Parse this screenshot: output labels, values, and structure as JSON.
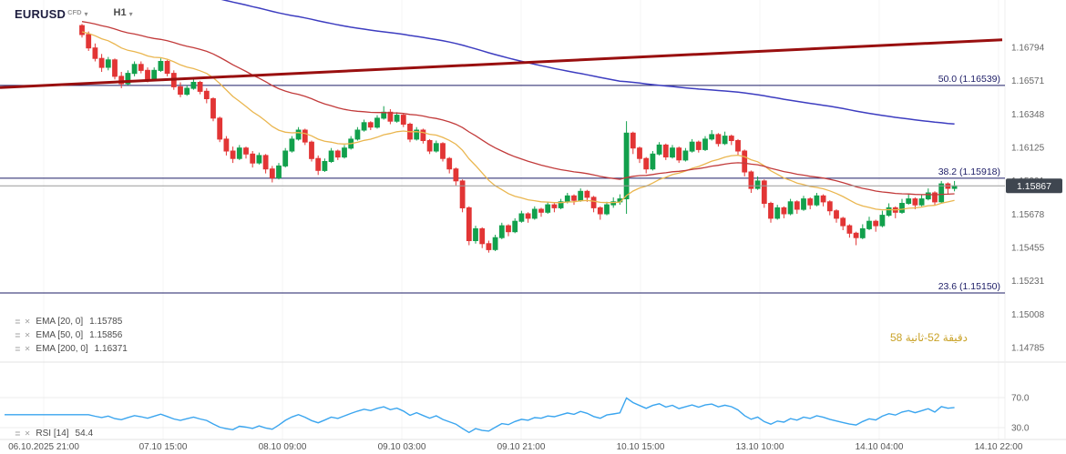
{
  "header": {
    "symbol": "EURUSD",
    "market": "CFD",
    "timeframe": "H1"
  },
  "indicators": {
    "rows": [
      {
        "name": "EMA [20, 0]",
        "value": "1.15785"
      },
      {
        "name": "EMA [50, 0]",
        "value": "1.15856"
      },
      {
        "name": "EMA [200, 0]",
        "value": "1.16371"
      }
    ],
    "rsi_row": {
      "name": "RSI [14]",
      "value": "54.4"
    }
  },
  "countdown": {
    "text": "دقيقة 52-ثانية 58",
    "color": "#c9a227"
  },
  "chart_data": {
    "type": "candlestick",
    "symbol": "EURUSD CFD",
    "timeframe": "H1",
    "price_range_visible": [
      1.1474,
      1.1711
    ],
    "grid": "off",
    "price_axis": {
      "labels": [
        "1.16794",
        "1.16571",
        "1.16348",
        "1.16125",
        "1.15901",
        "1.15678",
        "1.15455",
        "1.15231",
        "1.15008",
        "1.14785"
      ]
    },
    "time_axis": {
      "labels": [
        "06.10.2025 21:00",
        "07.10 15:00",
        "08.10 09:00",
        "09.10 03:00",
        "09.10 21:00",
        "10.10 15:00",
        "13.10 10:00",
        "14.10 04:00",
        "14.10 22:00"
      ]
    },
    "rsi_axis": {
      "labels": [
        "70.0",
        "30.0"
      ],
      "range": [
        0,
        100
      ]
    },
    "overlays": {
      "fibonacci": [
        {
          "label": "50.0 (1.16539)",
          "price": 1.16539
        },
        {
          "label": "38.2 (1.15918)",
          "price": 1.15918
        },
        {
          "label": "23.6 (1.15150)",
          "price": 1.1515
        }
      ],
      "trend_line": {
        "from_price": 1.16525,
        "to_price": 1.16845
      },
      "current_price": 1.15867,
      "current_price_label": "1.15867",
      "ema": [
        {
          "period": 20,
          "offset": 0,
          "last": 1.15785
        },
        {
          "period": 50,
          "offset": 0,
          "last": 1.15856
        },
        {
          "period": 200,
          "offset": 0,
          "last": 1.16371
        }
      ]
    },
    "rsi": {
      "period": 14,
      "last": 54.4,
      "levels": [
        70,
        30
      ]
    },
    "colors": {
      "up": "#12a04c",
      "down": "#e23535",
      "ema20": "#eab64f",
      "ema50": "#c23b3b",
      "ema200": "#3d3dc0",
      "trend": "#990f0f",
      "fib": "#1c1c66",
      "rsi": "#3aa5ef",
      "price_tag_bg": "#3f4650",
      "axis_text": "#666666"
    },
    "candles": [
      [
        1.1694,
        1.1695,
        1.1686,
        1.1688
      ],
      [
        1.1688,
        1.169,
        1.1677,
        1.1679
      ],
      [
        1.1679,
        1.1682,
        1.167,
        1.1672
      ],
      [
        1.1672,
        1.1675,
        1.1663,
        1.1666
      ],
      [
        1.1666,
        1.1673,
        1.1664,
        1.1671
      ],
      [
        1.1671,
        1.1672,
        1.1658,
        1.166
      ],
      [
        1.166,
        1.1663,
        1.1652,
        1.1655
      ],
      [
        1.1655,
        1.1664,
        1.1654,
        1.1662
      ],
      [
        1.1662,
        1.167,
        1.166,
        1.1668
      ],
      [
        1.1668,
        1.167,
        1.1662,
        1.1664
      ],
      [
        1.1664,
        1.1666,
        1.1656,
        1.1658
      ],
      [
        1.1658,
        1.1666,
        1.1657,
        1.1664
      ],
      [
        1.1664,
        1.1672,
        1.1663,
        1.167
      ],
      [
        1.167,
        1.1671,
        1.166,
        1.1662
      ],
      [
        1.1662,
        1.1664,
        1.1651,
        1.1653
      ],
      [
        1.1653,
        1.1656,
        1.1646,
        1.1648
      ],
      [
        1.1648,
        1.1654,
        1.1647,
        1.1652
      ],
      [
        1.1652,
        1.1658,
        1.1651,
        1.1656
      ],
      [
        1.1656,
        1.1657,
        1.1648,
        1.165
      ],
      [
        1.165,
        1.1652,
        1.1642,
        1.1645
      ],
      [
        1.1645,
        1.1646,
        1.163,
        1.1632
      ],
      [
        1.1632,
        1.1633,
        1.1616,
        1.1618
      ],
      [
        1.1618,
        1.162,
        1.1607,
        1.161
      ],
      [
        1.161,
        1.1613,
        1.1602,
        1.1605
      ],
      [
        1.1605,
        1.1614,
        1.1604,
        1.1612
      ],
      [
        1.1612,
        1.1613,
        1.1605,
        1.1608
      ],
      [
        1.1608,
        1.161,
        1.1599,
        1.1602
      ],
      [
        1.1602,
        1.1609,
        1.1601,
        1.1607
      ],
      [
        1.1607,
        1.1608,
        1.1595,
        1.1598
      ],
      [
        1.1598,
        1.16,
        1.1589,
        1.1592
      ],
      [
        1.1592,
        1.1602,
        1.1591,
        1.16
      ],
      [
        1.16,
        1.1612,
        1.1599,
        1.161
      ],
      [
        1.161,
        1.162,
        1.1609,
        1.1618
      ],
      [
        1.1618,
        1.1626,
        1.1617,
        1.1624
      ],
      [
        1.1624,
        1.1625,
        1.1614,
        1.1616
      ],
      [
        1.1616,
        1.1617,
        1.1603,
        1.1605
      ],
      [
        1.1605,
        1.1607,
        1.1594,
        1.1597
      ],
      [
        1.1597,
        1.1605,
        1.1596,
        1.1603
      ],
      [
        1.1603,
        1.1612,
        1.1602,
        1.161
      ],
      [
        1.161,
        1.1611,
        1.1604,
        1.1606
      ],
      [
        1.1606,
        1.1614,
        1.1605,
        1.1612
      ],
      [
        1.1612,
        1.162,
        1.1611,
        1.1618
      ],
      [
        1.1618,
        1.1626,
        1.1617,
        1.1624
      ],
      [
        1.1624,
        1.1631,
        1.1623,
        1.1629
      ],
      [
        1.1629,
        1.163,
        1.1624,
        1.1626
      ],
      [
        1.1626,
        1.1634,
        1.1625,
        1.1632
      ],
      [
        1.1632,
        1.164,
        1.1631,
        1.1636
      ],
      [
        1.1636,
        1.1638,
        1.1628,
        1.163
      ],
      [
        1.163,
        1.1636,
        1.1629,
        1.1634
      ],
      [
        1.1634,
        1.1635,
        1.1626,
        1.1628
      ],
      [
        1.1628,
        1.1629,
        1.1616,
        1.1618
      ],
      [
        1.1618,
        1.1626,
        1.1617,
        1.1624
      ],
      [
        1.1624,
        1.1625,
        1.1615,
        1.1617
      ],
      [
        1.1617,
        1.1618,
        1.1608,
        1.161
      ],
      [
        1.161,
        1.1617,
        1.1609,
        1.1615
      ],
      [
        1.1615,
        1.1616,
        1.1603,
        1.1605
      ],
      [
        1.1605,
        1.1606,
        1.1595,
        1.1598
      ],
      [
        1.1598,
        1.1599,
        1.1587,
        1.159
      ],
      [
        1.159,
        1.1591,
        1.1569,
        1.1572
      ],
      [
        1.1572,
        1.1573,
        1.1547,
        1.155
      ],
      [
        1.155,
        1.156,
        1.1548,
        1.1558
      ],
      [
        1.1558,
        1.1559,
        1.1545,
        1.1548
      ],
      [
        1.1548,
        1.155,
        1.1542,
        1.1544
      ],
      [
        1.1544,
        1.1554,
        1.1543,
        1.1552
      ],
      [
        1.1552,
        1.1562,
        1.1551,
        1.156
      ],
      [
        1.156,
        1.1561,
        1.1553,
        1.1556
      ],
      [
        1.1556,
        1.1565,
        1.1555,
        1.1563
      ],
      [
        1.1563,
        1.157,
        1.1562,
        1.1568
      ],
      [
        1.1568,
        1.1569,
        1.1562,
        1.1565
      ],
      [
        1.1565,
        1.1573,
        1.1564,
        1.1571
      ],
      [
        1.1571,
        1.1572,
        1.1566,
        1.1569
      ],
      [
        1.1569,
        1.1576,
        1.1568,
        1.1574
      ],
      [
        1.1574,
        1.1575,
        1.1569,
        1.1572
      ],
      [
        1.1572,
        1.1578,
        1.1571,
        1.1576
      ],
      [
        1.1576,
        1.1582,
        1.1575,
        1.158
      ],
      [
        1.158,
        1.1581,
        1.1574,
        1.1577
      ],
      [
        1.1577,
        1.1585,
        1.1576,
        1.1583
      ],
      [
        1.1583,
        1.1584,
        1.1576,
        1.1579
      ],
      [
        1.1579,
        1.158,
        1.1569,
        1.1572
      ],
      [
        1.1572,
        1.1573,
        1.1564,
        1.1568
      ],
      [
        1.1568,
        1.1576,
        1.1567,
        1.1574
      ],
      [
        1.1574,
        1.1579,
        1.1572,
        1.1576
      ],
      [
        1.1576,
        1.1581,
        1.1574,
        1.1578
      ],
      [
        1.1578,
        1.163,
        1.1568,
        1.1622
      ],
      [
        1.1622,
        1.1623,
        1.1608,
        1.1612
      ],
      [
        1.1612,
        1.1613,
        1.1602,
        1.1605
      ],
      [
        1.1605,
        1.1606,
        1.1595,
        1.1598
      ],
      [
        1.1598,
        1.161,
        1.1597,
        1.1608
      ],
      [
        1.1608,
        1.1616,
        1.1607,
        1.1614
      ],
      [
        1.1614,
        1.1615,
        1.1604,
        1.1606
      ],
      [
        1.1606,
        1.1614,
        1.1605,
        1.1612
      ],
      [
        1.1612,
        1.1613,
        1.1602,
        1.1604
      ],
      [
        1.1604,
        1.1612,
        1.1603,
        1.161
      ],
      [
        1.161,
        1.1618,
        1.1609,
        1.1616
      ],
      [
        1.1616,
        1.1617,
        1.1609,
        1.1611
      ],
      [
        1.1611,
        1.162,
        1.161,
        1.1618
      ],
      [
        1.1618,
        1.1624,
        1.1617,
        1.1621
      ],
      [
        1.1621,
        1.1622,
        1.1613,
        1.1615
      ],
      [
        1.1615,
        1.1623,
        1.1614,
        1.162
      ],
      [
        1.162,
        1.1621,
        1.1614,
        1.1617
      ],
      [
        1.1617,
        1.1618,
        1.1607,
        1.161
      ],
      [
        1.161,
        1.1611,
        1.1593,
        1.1596
      ],
      [
        1.1596,
        1.1597,
        1.1582,
        1.1585
      ],
      [
        1.1585,
        1.1593,
        1.1584,
        1.159
      ],
      [
        1.159,
        1.1591,
        1.1572,
        1.1575
      ],
      [
        1.1575,
        1.1576,
        1.1562,
        1.1565
      ],
      [
        1.1565,
        1.1574,
        1.1564,
        1.1572
      ],
      [
        1.1572,
        1.1573,
        1.1565,
        1.1568
      ],
      [
        1.1568,
        1.1578,
        1.1567,
        1.1576
      ],
      [
        1.1576,
        1.1577,
        1.1568,
        1.1571
      ],
      [
        1.1571,
        1.158,
        1.157,
        1.1578
      ],
      [
        1.1578,
        1.1579,
        1.1571,
        1.1574
      ],
      [
        1.1574,
        1.1582,
        1.1573,
        1.158
      ],
      [
        1.158,
        1.1581,
        1.1573,
        1.1576
      ],
      [
        1.1576,
        1.1577,
        1.1567,
        1.157
      ],
      [
        1.157,
        1.1571,
        1.1562,
        1.1565
      ],
      [
        1.1565,
        1.1566,
        1.1557,
        1.156
      ],
      [
        1.156,
        1.1561,
        1.1552,
        1.1555
      ],
      [
        1.1555,
        1.1556,
        1.1547,
        1.1552
      ],
      [
        1.1552,
        1.1561,
        1.1551,
        1.1558
      ],
      [
        1.1558,
        1.1566,
        1.1557,
        1.1563
      ],
      [
        1.1563,
        1.1564,
        1.1556,
        1.156
      ],
      [
        1.156,
        1.157,
        1.1559,
        1.1567
      ],
      [
        1.1567,
        1.1575,
        1.1566,
        1.1572
      ],
      [
        1.1572,
        1.1573,
        1.1565,
        1.1569
      ],
      [
        1.1569,
        1.1578,
        1.1568,
        1.1575
      ],
      [
        1.1575,
        1.1581,
        1.1574,
        1.1578
      ],
      [
        1.1578,
        1.1579,
        1.1571,
        1.1574
      ],
      [
        1.1574,
        1.1581,
        1.1573,
        1.1578
      ],
      [
        1.1578,
        1.1585,
        1.1577,
        1.1582
      ],
      [
        1.1582,
        1.1583,
        1.1574,
        1.1576
      ],
      [
        1.1576,
        1.159,
        1.1575,
        1.1588
      ],
      [
        1.1588,
        1.1589,
        1.1581,
        1.1585
      ],
      [
        1.1585,
        1.159,
        1.1583,
        1.15867
      ]
    ]
  }
}
